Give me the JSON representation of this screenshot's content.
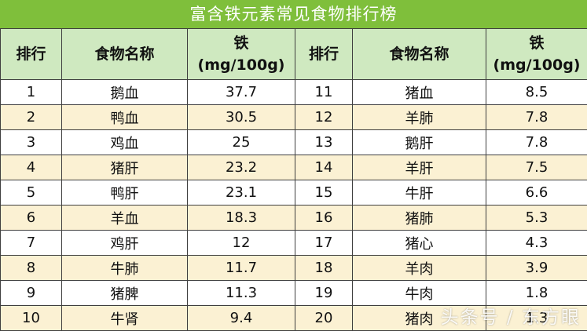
{
  "title": "富含铁元素常见食物排行榜",
  "headers": {
    "rank": "排行",
    "name": "食物名称",
    "iron_line1": "铁",
    "iron_line2": "(mg/100g)"
  },
  "rows": [
    {
      "r1": "1",
      "n1": "鹅血",
      "v1": "37.7",
      "r2": "11",
      "n2": "猪血",
      "v2": "8.5"
    },
    {
      "r1": "2",
      "n1": "鸭血",
      "v1": "30.5",
      "r2": "12",
      "n2": "羊肺",
      "v2": "7.8"
    },
    {
      "r1": "3",
      "n1": "鸡血",
      "v1": "25",
      "r2": "13",
      "n2": "鹅肝",
      "v2": "7.8"
    },
    {
      "r1": "4",
      "n1": "猪肝",
      "v1": "23.2",
      "r2": "14",
      "n2": "羊肝",
      "v2": "7.5"
    },
    {
      "r1": "5",
      "n1": "鸭肝",
      "v1": "23.1",
      "r2": "15",
      "n2": "牛肝",
      "v2": "6.6"
    },
    {
      "r1": "6",
      "n1": "羊血",
      "v1": "18.3",
      "r2": "16",
      "n2": "猪肺",
      "v2": "5.3"
    },
    {
      "r1": "7",
      "n1": "鸡肝",
      "v1": "12",
      "r2": "17",
      "n2": "猪心",
      "v2": "4.3"
    },
    {
      "r1": "8",
      "n1": "牛肺",
      "v1": "11.7",
      "r2": "18",
      "n2": "羊肉",
      "v2": "3.9"
    },
    {
      "r1": "9",
      "n1": "猪脾",
      "v1": "11.3",
      "r2": "19",
      "n2": "牛肉",
      "v2": "1.8"
    },
    {
      "r1": "10",
      "n1": "牛肾",
      "v1": "9.4",
      "r2": "20",
      "n2": "猪肉",
      "v2": "1.3"
    }
  ],
  "watermark": "头条号 / 东方眼"
}
